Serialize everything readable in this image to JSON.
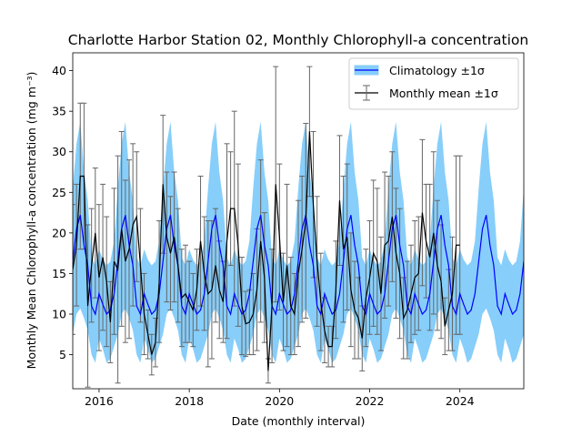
{
  "chart_data": {
    "type": "line",
    "title": "Charlotte Harbor Station 02, Monthly Chlorophyll-a concentration",
    "xlabel": "Date (monthly interval)",
    "ylabel": "Monthly Mean Chlorophyll-a concentration (mg m⁻³)",
    "xlim": [
      "2015-06",
      "2025-06"
    ],
    "ylim": [
      0.8,
      42.2
    ],
    "x_ticks": [
      "2016",
      "2018",
      "2020",
      "2022",
      "2024"
    ],
    "y_ticks": [
      5,
      10,
      15,
      20,
      25,
      30,
      35,
      40
    ],
    "grid": false,
    "legend": {
      "position": "top-right",
      "entries": [
        "Climatology ±1σ",
        "Monthly mean ±1σ"
      ]
    },
    "colors": {
      "climatology_band": "#87cefa",
      "climatology_line": "#0000ff",
      "monthly_line": "#000000",
      "error_bars": "#666666"
    },
    "climatology": {
      "name": "Climatology ±1σ",
      "months": [
        1,
        2,
        3,
        4,
        5,
        6,
        7,
        8,
        9,
        10,
        11,
        12
      ],
      "mean": [
        12.5,
        11.2,
        10.0,
        10.5,
        12.5,
        16.5,
        20.5,
        22.2,
        18.5,
        16.0,
        11.0,
        10.0
      ],
      "std": [
        5.5,
        5.5,
        6.0,
        6.0,
        6.5,
        9.0,
        10.5,
        11.5,
        9.0,
        8.0,
        6.0,
        6.0
      ]
    },
    "monthly_mean": {
      "name": "Monthly mean ±1σ",
      "start": "2015-06",
      "mean": [
        15.5,
        18.5,
        27.0,
        27.0,
        11.0,
        16.0,
        20.0,
        14.5,
        17.0,
        14.0,
        9.0,
        16.5,
        15.5,
        20.5,
        16.5,
        18.0,
        21.0,
        22.0,
        16.0,
        10.0,
        7.5,
        5.0,
        6.5,
        14.0,
        26.0,
        19.5,
        17.5,
        19.5,
        16.0,
        12.0,
        12.5,
        11.5,
        10.5,
        13.0,
        19.0,
        15.0,
        12.5,
        13.0,
        16.0,
        13.0,
        11.5,
        19.0,
        23.0,
        23.0,
        18.5,
        11.0,
        8.8,
        9.0,
        10.0,
        13.0,
        19.0,
        14.5,
        3.0,
        11.0,
        26.0,
        19.5,
        11.5,
        16.0,
        11.0,
        10.0,
        15.0,
        18.0,
        21.5,
        32.5,
        23.5,
        16.5,
        11.5,
        8.0,
        6.0,
        6.0,
        13.0,
        24.0,
        18.0,
        19.5,
        13.0,
        10.5,
        9.5,
        7.0,
        12.0,
        14.5,
        17.5,
        16.5,
        12.5,
        18.5,
        19.0,
        22.0,
        17.5,
        15.0,
        9.5,
        10.5,
        12.5,
        14.5,
        15.0,
        22.5,
        19.0,
        17.0,
        20.0,
        16.0,
        14.0,
        8.5,
        10.5,
        12.5,
        18.5,
        18.5
      ],
      "std": [
        8.0,
        7.5,
        9.0,
        9.0,
        10.0,
        7.0,
        8.0,
        9.0,
        9.0,
        8.0,
        5.0,
        9.0,
        14.0,
        12.0,
        10.0,
        11.0,
        10.0,
        8.0,
        7.0,
        5.0,
        3.0,
        2.5,
        3.0,
        7.5,
        8.5,
        8.0,
        7.0,
        8.0,
        7.0,
        6.0,
        6.0,
        5.0,
        4.5,
        5.0,
        8.0,
        7.0,
        9.0,
        8.5,
        7.0,
        6.0,
        5.0,
        12.0,
        7.0,
        12.0,
        10.0,
        6.0,
        4.0,
        4.0,
        5.0,
        7.5,
        10.0,
        8.0,
        1.5,
        7.0,
        14.5,
        9.0,
        6.0,
        10.0,
        6.0,
        5.0,
        9.0,
        9.0,
        12.0,
        8.0,
        9.0,
        8.0,
        6.0,
        4.0,
        2.5,
        2.5,
        6.0,
        8.0,
        9.0,
        9.0,
        7.0,
        6.0,
        5.0,
        4.0,
        6.0,
        7.0,
        9.0,
        9.0,
        7.0,
        9.0,
        8.0,
        8.0,
        8.0,
        8.0,
        5.0,
        6.0,
        6.0,
        7.0,
        7.0,
        9.0,
        7.0,
        9.0,
        10.0,
        8.0,
        7.0,
        3.5,
        5.0,
        7.0,
        11.0,
        11.0
      ]
    }
  }
}
